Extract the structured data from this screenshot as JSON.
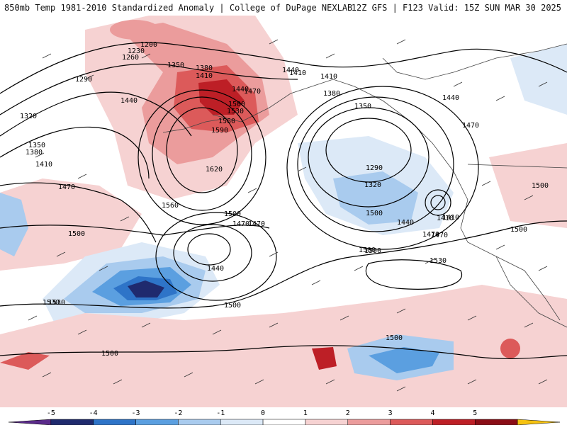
{
  "header": {
    "title_left": "850mb Temp 1981-2010 Standardized Anomaly | College of DuPage NEXLAB",
    "title_right": "12Z GFS | F123 Valid: 15Z SUN MAR 30 2025"
  },
  "legend": {
    "bins": [
      {
        "from": -6,
        "to": -5,
        "color": "#5a2a8a"
      },
      {
        "from": -5,
        "to": -4,
        "color": "#1f2a6e"
      },
      {
        "from": -4,
        "to": -3,
        "color": "#2e74c8"
      },
      {
        "from": -3,
        "to": -2,
        "color": "#5b9fe0"
      },
      {
        "from": -2,
        "to": -1,
        "color": "#a9cbee"
      },
      {
        "from": -1,
        "to": 0,
        "color": "#dce9f7"
      },
      {
        "from": 0,
        "to": 1,
        "color": "#ffffff"
      },
      {
        "from": 1,
        "to": 2,
        "color": "#f6d2d2"
      },
      {
        "from": 2,
        "to": 3,
        "color": "#eb9c9c"
      },
      {
        "from": 3,
        "to": 4,
        "color": "#dc5a5a"
      },
      {
        "from": 4,
        "to": 5,
        "color": "#bd1f26"
      },
      {
        "from": 5,
        "to": 6,
        "color": "#8a0d16"
      },
      {
        "from": 6,
        "to": 7,
        "color": "#f5c211"
      }
    ],
    "tick_labels": [
      "-5",
      "-4",
      "-3",
      "-2",
      "-1",
      "0",
      "1",
      "2",
      "3",
      "4",
      "5"
    ]
  },
  "contour_labels": [
    {
      "text": "1200"
    },
    {
      "text": "1230"
    },
    {
      "text": "1260"
    },
    {
      "text": "1290"
    },
    {
      "text": "1320"
    },
    {
      "text": "1350"
    },
    {
      "text": "1380"
    },
    {
      "text": "1410"
    },
    {
      "text": "1440"
    },
    {
      "text": "1470"
    },
    {
      "text": "1500"
    },
    {
      "text": "1530"
    },
    {
      "text": "1560"
    },
    {
      "text": "1590"
    },
    {
      "text": "1620"
    },
    {
      "text": "1350"
    },
    {
      "text": "1380"
    },
    {
      "text": "1410"
    },
    {
      "text": "1440"
    },
    {
      "text": "1470"
    },
    {
      "text": "1500"
    },
    {
      "text": "1530"
    },
    {
      "text": "1560"
    },
    {
      "text": "1410"
    },
    {
      "text": "1380"
    },
    {
      "text": "1350"
    },
    {
      "text": "1290"
    },
    {
      "text": "1320"
    },
    {
      "text": "1410"
    },
    {
      "text": "1440"
    },
    {
      "text": "1470"
    },
    {
      "text": "1500"
    },
    {
      "text": "1470"
    },
    {
      "text": "1440"
    },
    {
      "text": "1410"
    },
    {
      "text": "1500"
    },
    {
      "text": "1500"
    },
    {
      "text": "1440"
    },
    {
      "text": "1470"
    },
    {
      "text": "1500"
    },
    {
      "text": "1530"
    },
    {
      "text": "1500"
    },
    {
      "text": "1500"
    },
    {
      "text": "1500"
    },
    {
      "text": "1530"
    },
    {
      "text": "1500"
    },
    {
      "text": "1470"
    },
    {
      "text": "1500"
    },
    {
      "text": "1410"
    },
    {
      "text": "1440"
    },
    {
      "text": "1470"
    }
  ]
}
